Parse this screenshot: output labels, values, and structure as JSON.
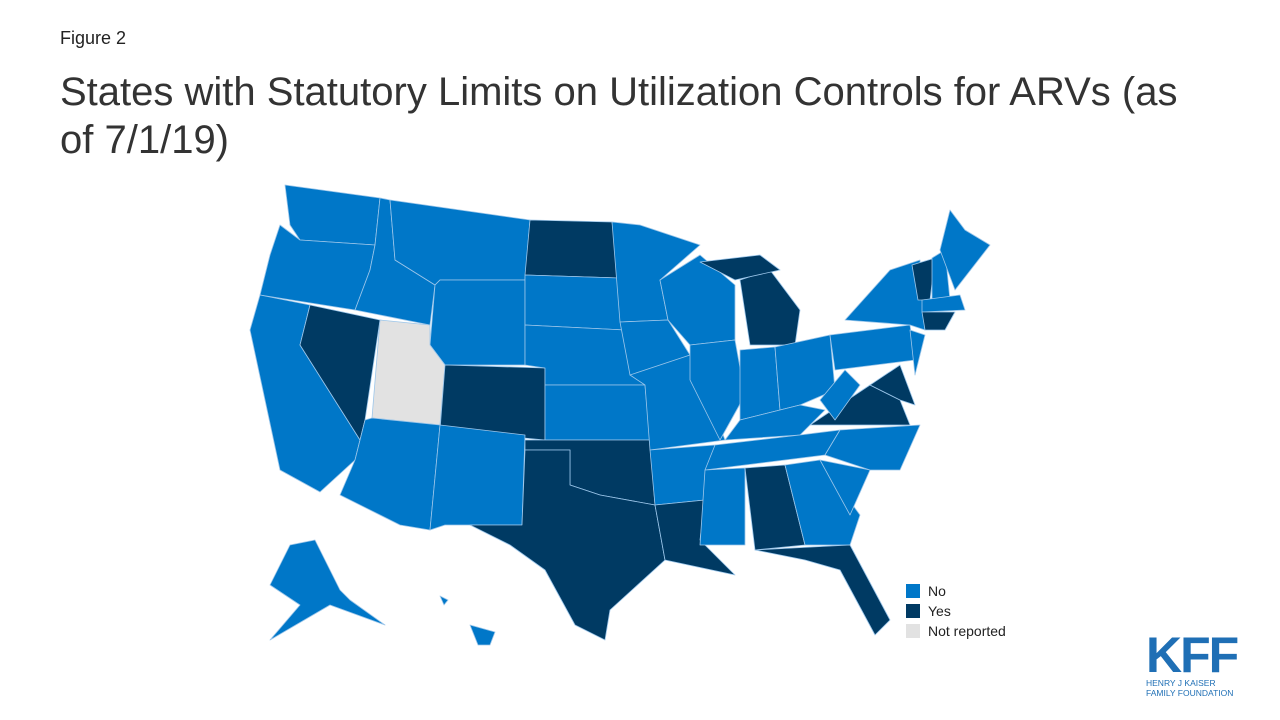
{
  "figure_label": "Figure 2",
  "title": "States with Statutory Limits on Utilization Controls for ARVs (as of 7/1/19)",
  "legend": {
    "items": [
      {
        "label": "No",
        "color": "#0077c8"
      },
      {
        "label": "Yes",
        "color": "#003a63"
      },
      {
        "label": "Not reported",
        "color": "#e2e2e2"
      }
    ]
  },
  "logo": {
    "name": "KFF",
    "tagline": "HENRY J KAISER FAMILY FOUNDATION",
    "color": "#1f6fb5"
  }
}
